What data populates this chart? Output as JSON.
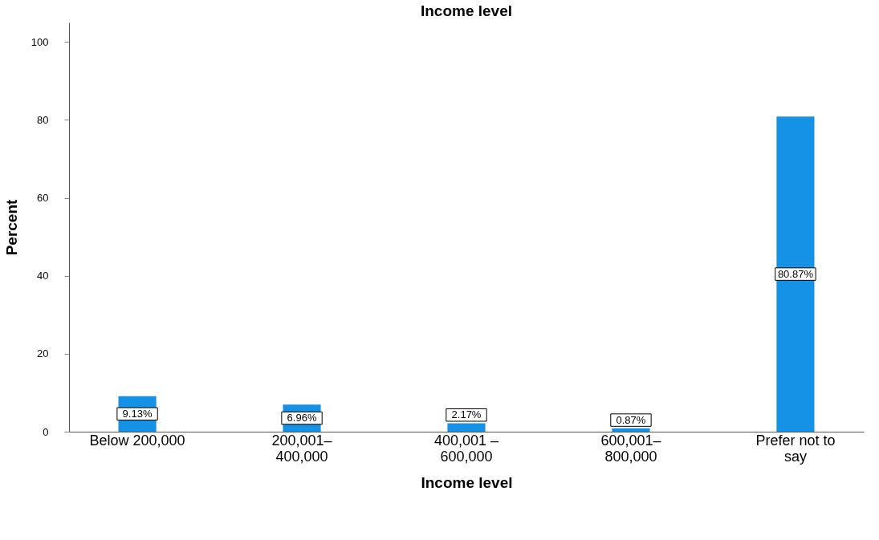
{
  "chart_data": {
    "type": "bar",
    "title": "Income level",
    "xlabel": "Income level",
    "ylabel": "Percent",
    "categories": [
      "Below 200,000",
      "200,001–\n400,000",
      "400,001 –\n600,000",
      "600,001–\n800,000",
      "Prefer not to\nsay"
    ],
    "values": [
      9.13,
      6.96,
      2.17,
      0.87,
      80.87
    ],
    "value_labels": [
      "9.13%",
      "6.96%",
      "2.17%",
      "0.87%",
      "80.87%"
    ],
    "color": "#1591e6",
    "ylim": [
      0,
      105
    ],
    "yticks": [
      0,
      20,
      40,
      60,
      80,
      100
    ],
    "grid": false
  }
}
